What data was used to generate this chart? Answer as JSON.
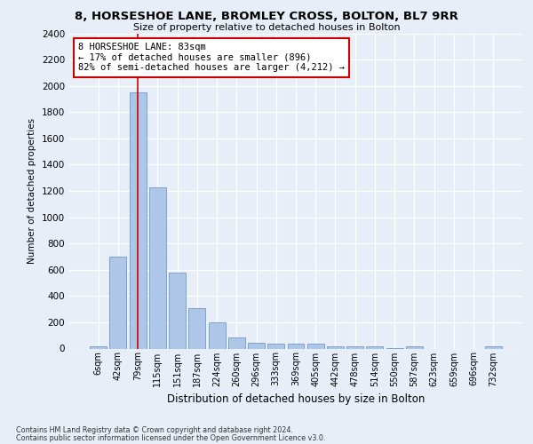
{
  "title": "8, HORSESHOE LANE, BROMLEY CROSS, BOLTON, BL7 9RR",
  "subtitle": "Size of property relative to detached houses in Bolton",
  "xlabel": "Distribution of detached houses by size in Bolton",
  "ylabel": "Number of detached properties",
  "footer_line1": "Contains HM Land Registry data © Crown copyright and database right 2024.",
  "footer_line2": "Contains public sector information licensed under the Open Government Licence v3.0.",
  "bar_labels": [
    "6sqm",
    "42sqm",
    "79sqm",
    "115sqm",
    "151sqm",
    "187sqm",
    "224sqm",
    "260sqm",
    "296sqm",
    "333sqm",
    "369sqm",
    "405sqm",
    "442sqm",
    "478sqm",
    "514sqm",
    "550sqm",
    "587sqm",
    "623sqm",
    "659sqm",
    "696sqm",
    "732sqm"
  ],
  "bar_values": [
    20,
    700,
    1950,
    1225,
    575,
    305,
    200,
    85,
    45,
    38,
    35,
    35,
    20,
    20,
    20,
    5,
    20,
    0,
    0,
    0,
    20
  ],
  "bar_color": "#aec6e8",
  "bar_edge_color": "#5a8fc0",
  "ylim": [
    0,
    2400
  ],
  "yticks": [
    0,
    200,
    400,
    600,
    800,
    1000,
    1200,
    1400,
    1600,
    1800,
    2000,
    2200,
    2400
  ],
  "red_line_x": 2.0,
  "annotation_text": "8 HORSESHOE LANE: 83sqm\n← 17% of detached houses are smaller (896)\n82% of semi-detached houses are larger (4,212) →",
  "annotation_box_color": "#ffffff",
  "annotation_border_color": "#cc0000",
  "background_color": "#e8eef8",
  "grid_color": "#ffffff"
}
